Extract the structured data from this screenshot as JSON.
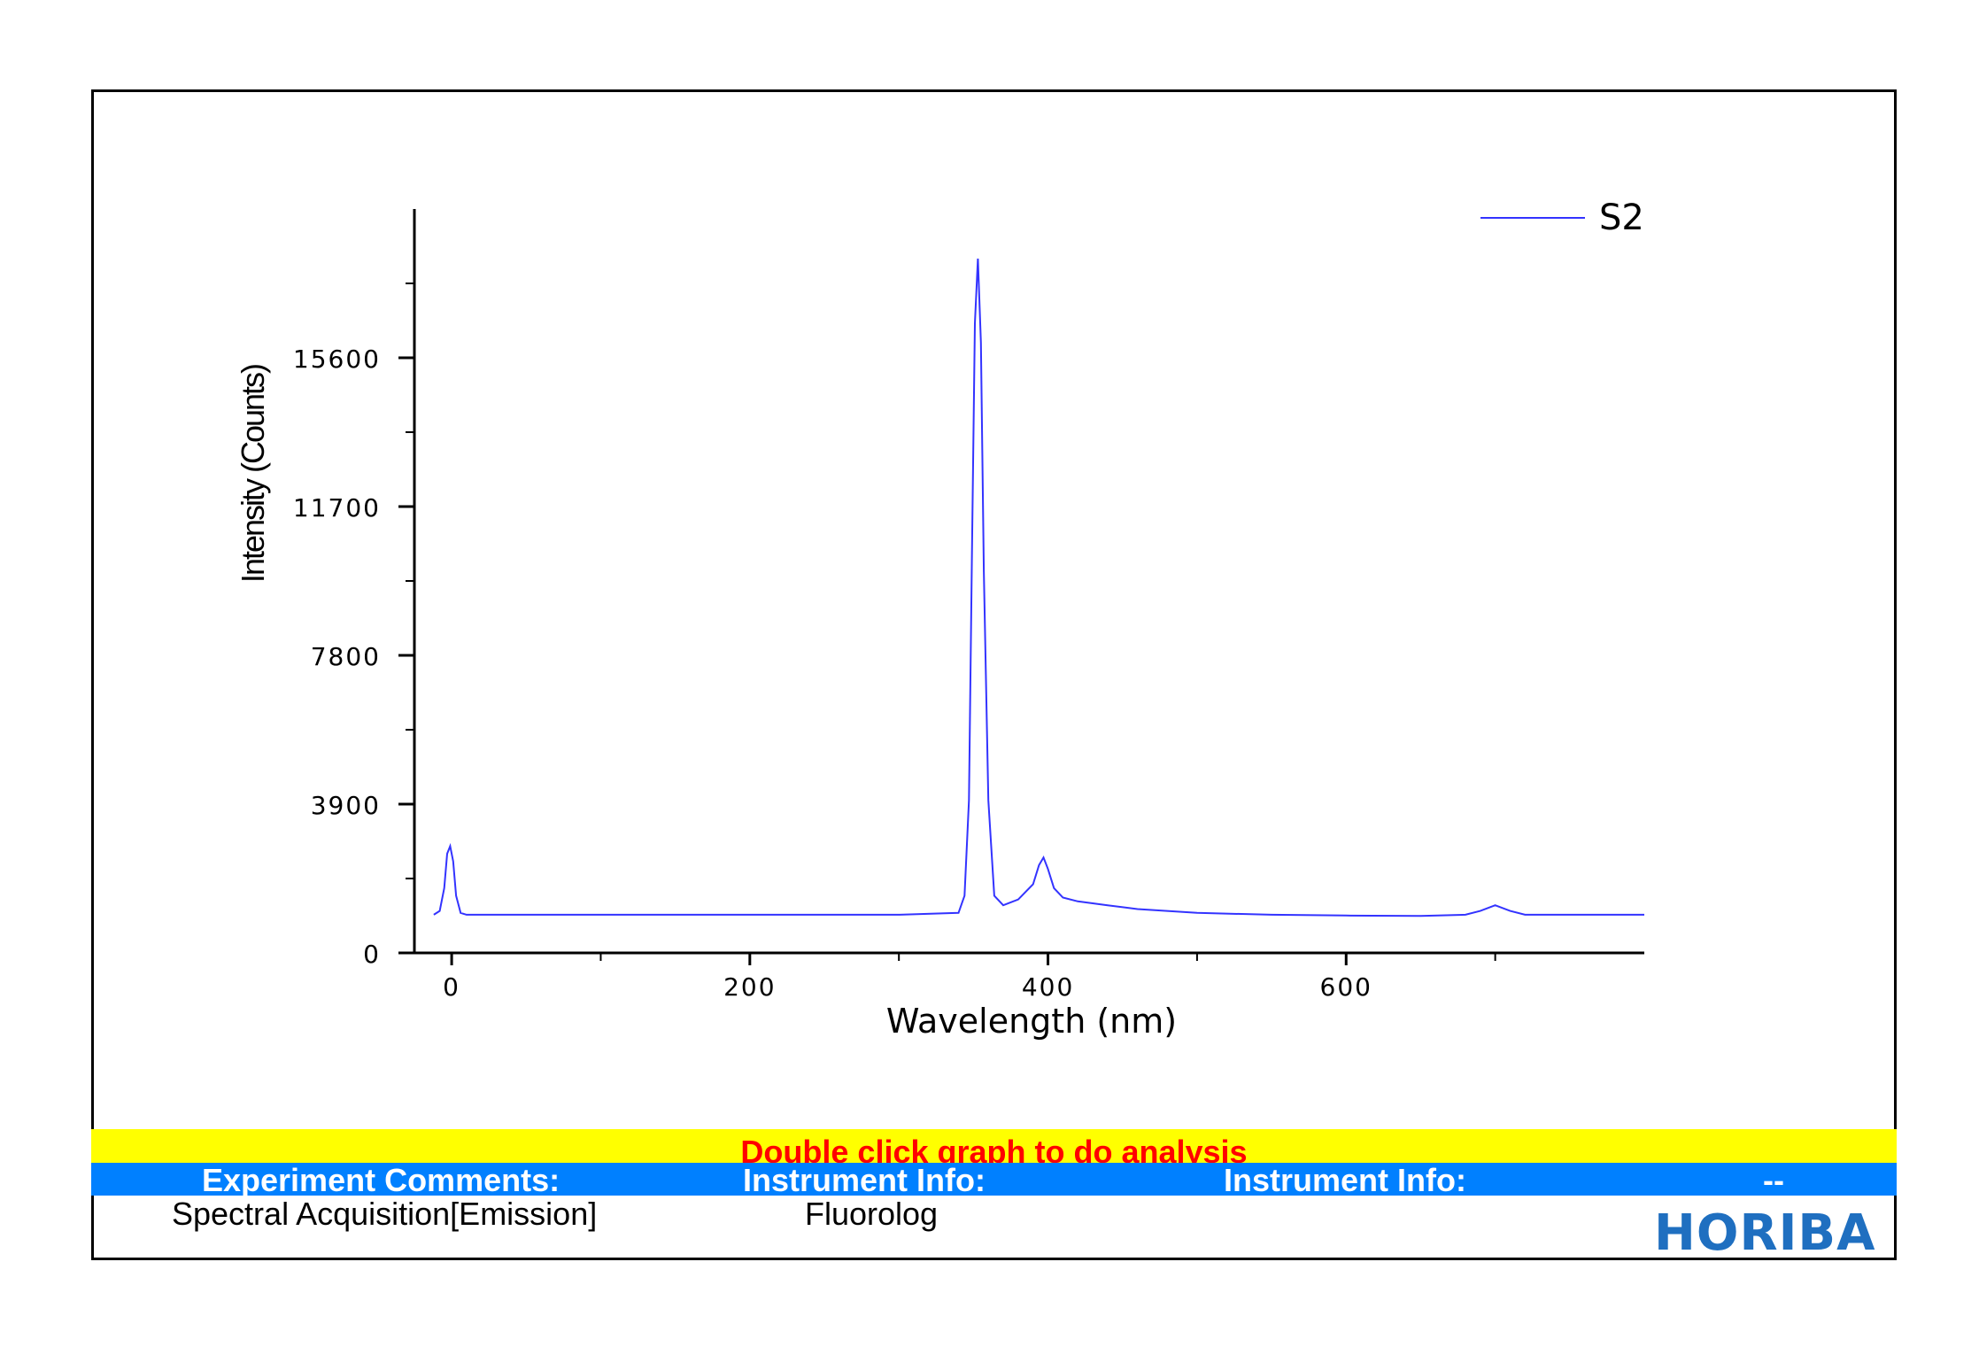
{
  "chart_data": {
    "type": "line",
    "title": "",
    "xlabel": "Wavelength (nm)",
    "ylabel": "Intensity (Counts)",
    "xlim": [
      -25,
      800
    ],
    "ylim": [
      0,
      19500
    ],
    "x_ticks": [
      0,
      200,
      400,
      600
    ],
    "y_ticks": [
      0,
      3900,
      7800,
      11700,
      15600
    ],
    "legend_position": "top-right",
    "grid": false,
    "series": [
      {
        "name": "S2",
        "color": "#3333ff",
        "x": [
          -12,
          -8,
          -5,
          -3,
          -1,
          1,
          3,
          6,
          10,
          50,
          100,
          150,
          200,
          250,
          300,
          340,
          344,
          347,
          349,
          351,
          353,
          355,
          357,
          360,
          364,
          370,
          380,
          390,
          394,
          397,
          400,
          404,
          410,
          420,
          440,
          460,
          480,
          500,
          550,
          600,
          650,
          680,
          690,
          700,
          710,
          720,
          760,
          800
        ],
        "y": [
          1000,
          1100,
          1700,
          2600,
          2800,
          2400,
          1500,
          1050,
          1000,
          1000,
          1000,
          1000,
          1000,
          1000,
          1000,
          1050,
          1500,
          4000,
          10500,
          16500,
          18200,
          16000,
          10000,
          4000,
          1500,
          1250,
          1400,
          1800,
          2300,
          2500,
          2200,
          1700,
          1450,
          1350,
          1250,
          1150,
          1100,
          1050,
          1000,
          980,
          970,
          1000,
          1100,
          1250,
          1100,
          1000,
          1000,
          1000
        ]
      }
    ]
  },
  "banner": {
    "text": "Double click graph to do analysis"
  },
  "info": {
    "experiment_label": "Experiment Comments:",
    "instrument_label_1": "Instrument Info:",
    "instrument_label_2": "Instrument Info:",
    "dash": "--",
    "experiment_value": "Spectral Acquisition[Emission]",
    "instrument_value": "Fluorolog"
  },
  "logo": {
    "text": "HORIBA",
    "color": "#1f6fc0"
  }
}
